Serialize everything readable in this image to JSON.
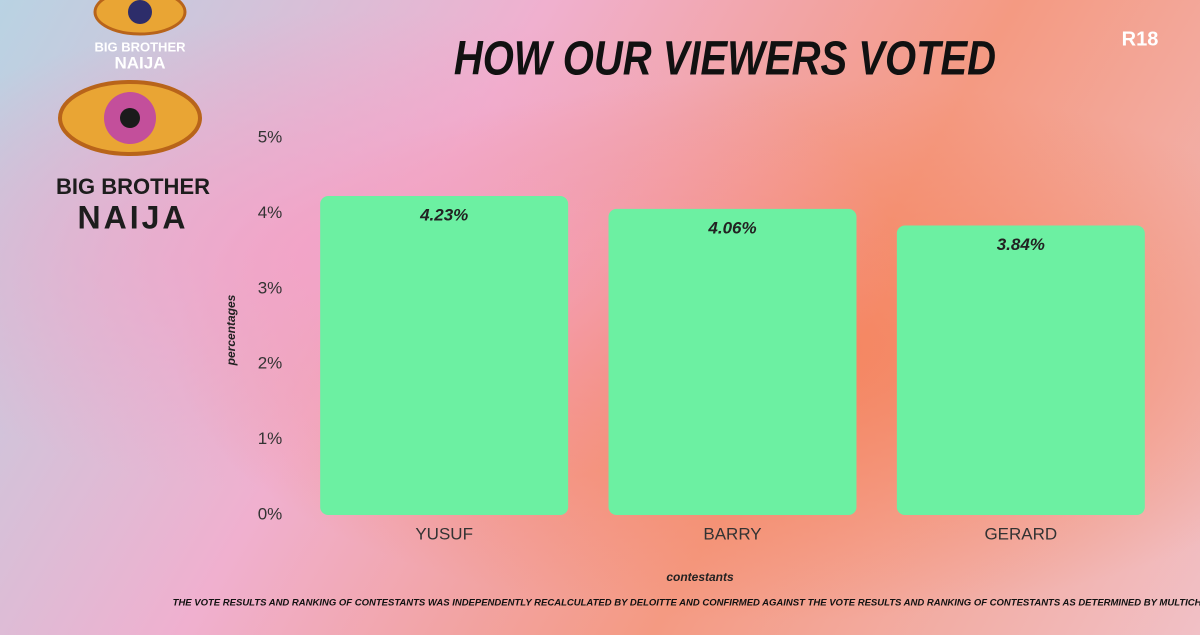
{
  "chart_data": {
    "type": "bar",
    "title": "HOW OUR VIEWERS VOTED",
    "categories": [
      "YUSUF",
      "BARRY",
      "GERARD"
    ],
    "values": [
      4.23,
      4.06,
      3.84
    ],
    "value_labels": [
      "4.23%",
      "4.06%",
      "3.84%"
    ],
    "color": "#6cf0a2",
    "x_label": "contestants",
    "y_label": "percentages",
    "ylim": [
      0,
      5
    ],
    "yticks": [
      {
        "value": 0,
        "label": "0%"
      },
      {
        "value": 1,
        "label": "1%"
      },
      {
        "value": 2,
        "label": "2%"
      },
      {
        "value": 3,
        "label": "3%"
      },
      {
        "value": 4,
        "label": "4%"
      },
      {
        "value": 5,
        "label": "5%"
      }
    ],
    "grid": false
  },
  "branding": {
    "small_logo": [
      "BIG BROTHER",
      "NAIJA"
    ],
    "large_logo": [
      "BIG BROTHER",
      "NAIJA"
    ]
  },
  "rating": "R18",
  "footnote": "THE VOTE RESULTS AND RANKING OF CONTESTANTS WAS INDEPENDENTLY RECALCULATED BY DELOITTE AND CONFIRMED AGAINST THE VOTE RESULTS AND RANKING OF CONTESTANTS AS DETERMINED BY MULTICHOICE."
}
